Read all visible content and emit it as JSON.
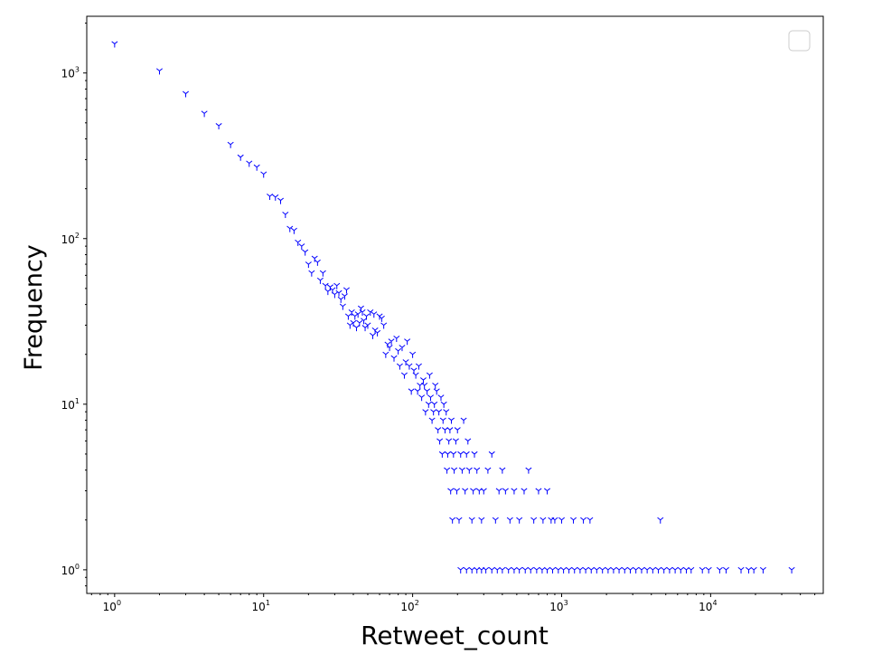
{
  "chart_data": {
    "type": "scatter",
    "title": "",
    "xlabel": "Retweet_count",
    "ylabel": "Frequency",
    "xscale": "log",
    "yscale": "log",
    "xlim": [
      0.65,
      57000
    ],
    "ylim": [
      0.72,
      2200
    ],
    "grid": false,
    "legend": "top-right (empty box)",
    "marker": "tri_down",
    "color": "#0000ff",
    "x_ticks": [
      1,
      10,
      100,
      1000,
      10000
    ],
    "x_tick_labels": [
      {
        "base": "10",
        "exp": "0"
      },
      {
        "base": "10",
        "exp": "1"
      },
      {
        "base": "10",
        "exp": "2"
      },
      {
        "base": "10",
        "exp": "3"
      },
      {
        "base": "10",
        "exp": "4"
      }
    ],
    "y_ticks": [
      1,
      10,
      100,
      1000
    ],
    "y_tick_labels": [
      {
        "base": "10",
        "exp": "0"
      },
      {
        "base": "10",
        "exp": "1"
      },
      {
        "base": "10",
        "exp": "2"
      },
      {
        "base": "10",
        "exp": "3"
      }
    ],
    "series": [
      {
        "points": [
          [
            1,
            1500
          ],
          [
            2,
            1030
          ],
          [
            3,
            750
          ],
          [
            4,
            570
          ],
          [
            5,
            480
          ],
          [
            6,
            370
          ],
          [
            7,
            310
          ],
          [
            8,
            285
          ],
          [
            9,
            270
          ],
          [
            10,
            245
          ],
          [
            11,
            180
          ],
          [
            12,
            178
          ],
          [
            13,
            170
          ],
          [
            14,
            140
          ],
          [
            15,
            115
          ],
          [
            16,
            112
          ],
          [
            17,
            95
          ],
          [
            18,
            90
          ],
          [
            19,
            83
          ],
          [
            20,
            70
          ],
          [
            21,
            62
          ],
          [
            22,
            76
          ],
          [
            23,
            72
          ],
          [
            24,
            56
          ],
          [
            25,
            62
          ],
          [
            26,
            52
          ],
          [
            27,
            48
          ],
          [
            28,
            51
          ],
          [
            29,
            49
          ],
          [
            30,
            46
          ],
          [
            31,
            52
          ],
          [
            32,
            47
          ],
          [
            33,
            43
          ],
          [
            34,
            39
          ],
          [
            35,
            45
          ],
          [
            36,
            49
          ],
          [
            37,
            34
          ],
          [
            38,
            30
          ],
          [
            39,
            36
          ],
          [
            40,
            31
          ],
          [
            41,
            34
          ],
          [
            42,
            29
          ],
          [
            43,
            35
          ],
          [
            44,
            31
          ],
          [
            45,
            38
          ],
          [
            46,
            36
          ],
          [
            47,
            32
          ],
          [
            48,
            29
          ],
          [
            49,
            34
          ],
          [
            50,
            30
          ],
          [
            52,
            36
          ],
          [
            54,
            26
          ],
          [
            55,
            35
          ],
          [
            56,
            28
          ],
          [
            58,
            27
          ],
          [
            60,
            34
          ],
          [
            62,
            33
          ],
          [
            64,
            30
          ],
          [
            66,
            20
          ],
          [
            68,
            23
          ],
          [
            70,
            22
          ],
          [
            72,
            24
          ],
          [
            75,
            19
          ],
          [
            78,
            25
          ],
          [
            80,
            21
          ],
          [
            82,
            17
          ],
          [
            85,
            22
          ],
          [
            88,
            15
          ],
          [
            90,
            18
          ],
          [
            92,
            24
          ],
          [
            95,
            17
          ],
          [
            98,
            12
          ],
          [
            100,
            20
          ],
          [
            102,
            16
          ],
          [
            105,
            15
          ],
          [
            108,
            12
          ],
          [
            110,
            17
          ],
          [
            112,
            13
          ],
          [
            115,
            11
          ],
          [
            118,
            14
          ],
          [
            120,
            13
          ],
          [
            122,
            9
          ],
          [
            125,
            12
          ],
          [
            128,
            10
          ],
          [
            130,
            15
          ],
          [
            132,
            11
          ],
          [
            135,
            8
          ],
          [
            138,
            9
          ],
          [
            140,
            10
          ],
          [
            142,
            13
          ],
          [
            145,
            12
          ],
          [
            148,
            7
          ],
          [
            150,
            9
          ],
          [
            152,
            6
          ],
          [
            155,
            11
          ],
          [
            158,
            5
          ],
          [
            160,
            8
          ],
          [
            162,
            10
          ],
          [
            165,
            7
          ],
          [
            168,
            9
          ],
          [
            170,
            4
          ],
          [
            172,
            5
          ],
          [
            175,
            6
          ],
          [
            178,
            7
          ],
          [
            180,
            3
          ],
          [
            182,
            8
          ],
          [
            185,
            2
          ],
          [
            188,
            5
          ],
          [
            190,
            4
          ],
          [
            195,
            6
          ],
          [
            198,
            3
          ],
          [
            200,
            7
          ],
          [
            205,
            2
          ],
          [
            210,
            5
          ],
          [
            215,
            4
          ],
          [
            220,
            8
          ],
          [
            225,
            3
          ],
          [
            230,
            5
          ],
          [
            235,
            6
          ],
          [
            240,
            4
          ],
          [
            250,
            2
          ],
          [
            255,
            3
          ],
          [
            260,
            5
          ],
          [
            270,
            4
          ],
          [
            280,
            3
          ],
          [
            290,
            2
          ],
          [
            300,
            3
          ],
          [
            320,
            4
          ],
          [
            340,
            5
          ],
          [
            360,
            2
          ],
          [
            380,
            3
          ],
          [
            400,
            4
          ],
          [
            420,
            3
          ],
          [
            450,
            2
          ],
          [
            480,
            3
          ],
          [
            520,
            2
          ],
          [
            560,
            3
          ],
          [
            600,
            4
          ],
          [
            650,
            2
          ],
          [
            700,
            3
          ],
          [
            750,
            2
          ],
          [
            800,
            3
          ],
          [
            850,
            2
          ],
          [
            900,
            2
          ],
          [
            1000,
            2
          ],
          [
            1200,
            2
          ],
          [
            1400,
            2
          ],
          [
            1550,
            2
          ],
          [
            4600,
            2
          ],
          [
            210,
            1
          ],
          [
            230,
            1
          ],
          [
            250,
            1
          ],
          [
            270,
            1
          ],
          [
            290,
            1
          ],
          [
            310,
            1
          ],
          [
            340,
            1
          ],
          [
            370,
            1
          ],
          [
            400,
            1
          ],
          [
            440,
            1
          ],
          [
            480,
            1
          ],
          [
            520,
            1
          ],
          [
            570,
            1
          ],
          [
            620,
            1
          ],
          [
            680,
            1
          ],
          [
            740,
            1
          ],
          [
            800,
            1
          ],
          [
            870,
            1
          ],
          [
            950,
            1
          ],
          [
            1030,
            1
          ],
          [
            1120,
            1
          ],
          [
            1220,
            1
          ],
          [
            1330,
            1
          ],
          [
            1450,
            1
          ],
          [
            1580,
            1
          ],
          [
            1720,
            1
          ],
          [
            1880,
            1
          ],
          [
            2050,
            1
          ],
          [
            2230,
            1
          ],
          [
            2430,
            1
          ],
          [
            2650,
            1
          ],
          [
            2890,
            1
          ],
          [
            3150,
            1
          ],
          [
            3440,
            1
          ],
          [
            3750,
            1
          ],
          [
            4090,
            1
          ],
          [
            4460,
            1
          ],
          [
            4860,
            1
          ],
          [
            5300,
            1
          ],
          [
            5780,
            1
          ],
          [
            6300,
            1
          ],
          [
            6870,
            1
          ],
          [
            7400,
            1
          ],
          [
            8800,
            1
          ],
          [
            9700,
            1
          ],
          [
            11500,
            1
          ],
          [
            12700,
            1
          ],
          [
            16000,
            1
          ],
          [
            18000,
            1
          ],
          [
            19500,
            1
          ],
          [
            22500,
            1
          ],
          [
            35000,
            1
          ]
        ]
      }
    ]
  }
}
